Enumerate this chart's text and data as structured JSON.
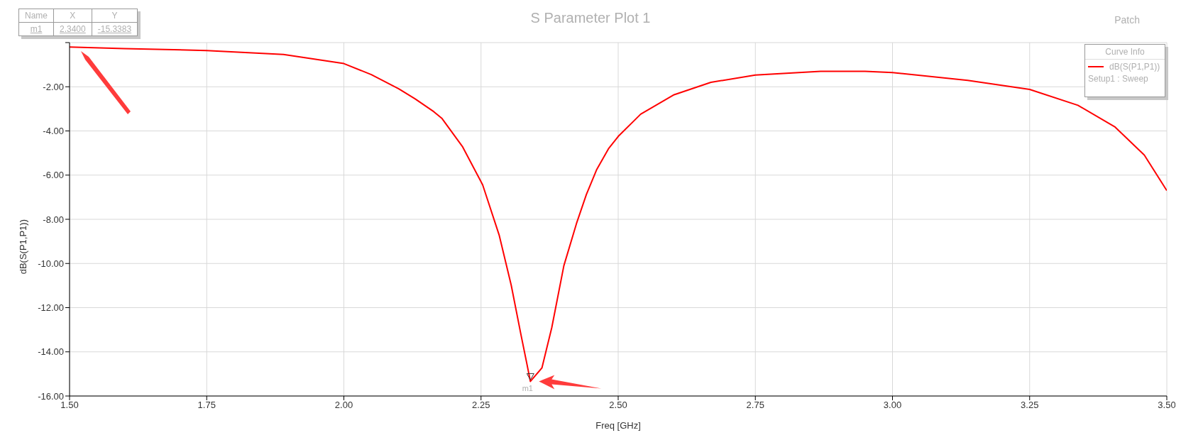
{
  "chart_data": {
    "type": "line",
    "title": "S Parameter Plot 1",
    "xlabel": "Freq [GHz]",
    "ylabel": "dB(S(P1,P1))",
    "legend_title": "Curve Info",
    "legend": "top right",
    "grid": true,
    "marker": "none",
    "line_style": "solid",
    "xlim": [
      1.5,
      3.5
    ],
    "xticks": [
      {
        "value": 1.5,
        "label": "1.50"
      },
      1.75,
      {
        "value": 2,
        "label": "2.00"
      },
      2.25,
      {
        "value": 2.5,
        "label": "2.50"
      },
      2.75,
      {
        "value": 3,
        "label": "3.00"
      },
      3.25,
      {
        "value": 3.5,
        "label": "3.50"
      }
    ],
    "ylim": [
      -16,
      0
    ],
    "yticks": [
      {
        "value": -16,
        "label": "-16.00"
      },
      {
        "value": -14,
        "label": "-14.00"
      },
      {
        "value": -12,
        "label": "-12.00"
      },
      {
        "value": -10,
        "label": "-10.00"
      },
      {
        "value": -8,
        "label": "-8.00"
      },
      {
        "value": -6,
        "label": "-6.00"
      },
      {
        "value": -4,
        "label": "-4.00"
      },
      {
        "value": -2,
        "label": "-2.00"
      },
      {
        "value": 0,
        "label": null
      }
    ],
    "x": [
      1.5,
      1.6,
      1.75,
      1.89,
      2.0,
      2.05,
      2.1,
      2.13,
      2.164,
      2.179,
      2.216,
      2.253,
      2.283,
      2.305,
      2.323,
      2.333,
      2.34,
      2.361,
      2.379,
      2.401,
      2.424,
      2.442,
      2.461,
      2.483,
      2.5,
      2.541,
      2.602,
      2.669,
      2.75,
      2.869,
      2.95,
      3.0,
      3.137,
      3.25,
      3.338,
      3.405,
      3.459,
      3.5
    ],
    "series": [
      {
        "name": "dB(S(P1,P1))",
        "color": "#ff0000",
        "values": [
          -0.2,
          -0.27,
          -0.36,
          -0.54,
          -0.95,
          -1.45,
          -2.09,
          -2.55,
          -3.13,
          -3.44,
          -4.7,
          -6.44,
          -8.71,
          -10.98,
          -13.25,
          -14.47,
          -15.34,
          -14.73,
          -12.9,
          -10.1,
          -8.19,
          -6.88,
          -5.74,
          -4.78,
          -4.25,
          -3.24,
          -2.36,
          -1.8,
          -1.47,
          -1.3,
          -1.3,
          -1.36,
          -1.71,
          -2.12,
          -2.84,
          -3.81,
          -5.09,
          -6.7
        ]
      }
    ],
    "annotations": [
      "Name",
      "X",
      "Y",
      "m1",
      "2.3400",
      "-15.3383",
      "Patch",
      "Setup1 : Sweep",
      {
        "text": "m1",
        "x": 2.34,
        "y": -15.3383
      }
    ]
  }
}
